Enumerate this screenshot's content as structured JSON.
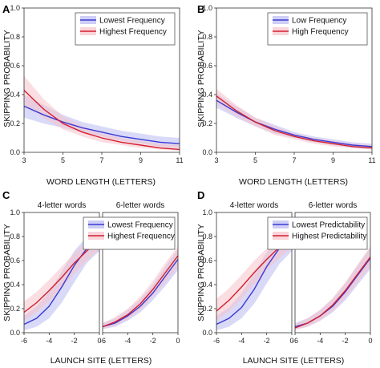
{
  "colors": {
    "blue": "#3a3ad4",
    "red": "#d21f2f",
    "blue_band": "#b9b9f2",
    "red_band": "#f6c3cb"
  },
  "chart_data": [
    {
      "panel": "A",
      "type": "line",
      "xlabel": "WORD LENGTH (LETTERS)",
      "ylabel": "SKIPPING PROBABILITY",
      "xlim": [
        3,
        11
      ],
      "ylim": [
        0,
        1.0
      ],
      "xticks": [
        "3",
        "5",
        "7",
        "9",
        "11"
      ],
      "yticks": [
        "0.0",
        "0.2",
        "0.4",
        "0.6",
        "0.8",
        "1.0"
      ],
      "legend": {
        "position": "top-right"
      },
      "series": [
        {
          "name": "Lowest Frequency",
          "color": "blue",
          "x": [
            3,
            4,
            5,
            6,
            7,
            8,
            9,
            10,
            11
          ],
          "y": [
            0.32,
            0.26,
            0.21,
            0.17,
            0.14,
            0.11,
            0.09,
            0.07,
            0.06
          ],
          "lower": [
            0.24,
            0.2,
            0.17,
            0.14,
            0.11,
            0.08,
            0.06,
            0.04,
            0.03
          ],
          "upper": [
            0.4,
            0.33,
            0.26,
            0.21,
            0.18,
            0.15,
            0.13,
            0.11,
            0.1
          ]
        },
        {
          "name": "Highest Frequency",
          "color": "red",
          "x": [
            3,
            4,
            5,
            6,
            7,
            8,
            9,
            10,
            11
          ],
          "y": [
            0.43,
            0.3,
            0.2,
            0.14,
            0.1,
            0.07,
            0.05,
            0.03,
            0.02
          ],
          "lower": [
            0.33,
            0.24,
            0.16,
            0.11,
            0.07,
            0.05,
            0.03,
            0.02,
            0.01
          ],
          "upper": [
            0.53,
            0.37,
            0.25,
            0.18,
            0.13,
            0.1,
            0.08,
            0.06,
            0.05
          ]
        }
      ]
    },
    {
      "panel": "B",
      "type": "line",
      "xlabel": "WORD LENGTH (LETTERS)",
      "ylabel": "SKIPPING PROBABILITY",
      "xlim": [
        3,
        11
      ],
      "ylim": [
        0,
        1.0
      ],
      "xticks": [
        "3",
        "5",
        "7",
        "9",
        "11"
      ],
      "yticks": [
        "0.0",
        "0.2",
        "0.4",
        "0.6",
        "0.8",
        "1.0"
      ],
      "legend": {
        "position": "top-right"
      },
      "series": [
        {
          "name": "Low Frequency",
          "color": "blue",
          "x": [
            3,
            4,
            5,
            6,
            7,
            8,
            9,
            10,
            11
          ],
          "y": [
            0.36,
            0.28,
            0.21,
            0.16,
            0.12,
            0.09,
            0.07,
            0.05,
            0.04
          ],
          "lower": [
            0.31,
            0.24,
            0.18,
            0.13,
            0.1,
            0.07,
            0.05,
            0.03,
            0.02
          ],
          "upper": [
            0.41,
            0.32,
            0.24,
            0.19,
            0.14,
            0.11,
            0.09,
            0.07,
            0.06
          ]
        },
        {
          "name": "High Frequency",
          "color": "red",
          "x": [
            3,
            4,
            5,
            6,
            7,
            8,
            9,
            10,
            11
          ],
          "y": [
            0.39,
            0.29,
            0.21,
            0.15,
            0.11,
            0.08,
            0.06,
            0.04,
            0.03
          ],
          "lower": [
            0.34,
            0.25,
            0.18,
            0.12,
            0.09,
            0.06,
            0.04,
            0.03,
            0.02
          ],
          "upper": [
            0.44,
            0.33,
            0.24,
            0.18,
            0.13,
            0.1,
            0.08,
            0.06,
            0.05
          ]
        }
      ]
    },
    {
      "panel": "C",
      "type": "line",
      "xlabel": "LAUNCH SITE (LETTERS)",
      "ylabel": "SKIPPING PROBABILITY",
      "ylim": [
        0,
        1.0
      ],
      "yticks": [
        "0.0",
        "0.2",
        "0.4",
        "0.6",
        "0.8",
        "1.0"
      ],
      "legend": {
        "position": "top-right"
      },
      "facets": [
        {
          "strip": "4-letter words",
          "xlim": [
            -6,
            0
          ],
          "xticks": [
            "-6",
            "-4",
            "-2",
            "0"
          ],
          "series": [
            {
              "name": "Lowest Frequency",
              "color": "blue",
              "x": [
                -6,
                -5,
                -4,
                -3,
                -2,
                -1,
                0
              ],
              "y": [
                0.07,
                0.12,
                0.22,
                0.38,
                0.56,
                0.7,
                0.8
              ],
              "lower": [
                0.02,
                0.05,
                0.12,
                0.25,
                0.42,
                0.58,
                0.68
              ],
              "upper": [
                0.14,
                0.22,
                0.34,
                0.51,
                0.68,
                0.8,
                0.88
              ]
            },
            {
              "name": "Highest Frequency",
              "color": "red",
              "x": [
                -6,
                -5,
                -4,
                -3,
                -2,
                -1,
                0
              ],
              "y": [
                0.17,
                0.25,
                0.35,
                0.46,
                0.58,
                0.68,
                0.77
              ],
              "lower": [
                0.1,
                0.17,
                0.26,
                0.37,
                0.49,
                0.6,
                0.69
              ],
              "upper": [
                0.26,
                0.34,
                0.44,
                0.55,
                0.66,
                0.76,
                0.84
              ]
            }
          ]
        },
        {
          "strip": "6-letter words",
          "xlim": [
            -6,
            0
          ],
          "xticks": [
            "-6",
            "-4",
            "-2",
            "0"
          ],
          "series": [
            {
              "name": "Lowest Frequency",
              "color": "blue",
              "x": [
                -6,
                -5,
                -4,
                -3,
                -2,
                -1,
                0
              ],
              "y": [
                0.05,
                0.08,
                0.14,
                0.22,
                0.33,
                0.47,
                0.61
              ],
              "lower": [
                0.03,
                0.05,
                0.1,
                0.17,
                0.27,
                0.39,
                0.52
              ],
              "upper": [
                0.08,
                0.12,
                0.19,
                0.28,
                0.4,
                0.55,
                0.7
              ]
            },
            {
              "name": "Highest Frequency",
              "color": "red",
              "x": [
                -6,
                -5,
                -4,
                -3,
                -2,
                -1,
                0
              ],
              "y": [
                0.05,
                0.09,
                0.15,
                0.24,
                0.36,
                0.5,
                0.64
              ],
              "lower": [
                0.03,
                0.06,
                0.11,
                0.19,
                0.3,
                0.42,
                0.55
              ],
              "upper": [
                0.08,
                0.13,
                0.2,
                0.3,
                0.43,
                0.58,
                0.72
              ]
            }
          ]
        }
      ]
    },
    {
      "panel": "D",
      "type": "line",
      "xlabel": "LAUNCH SITE (LETTERS)",
      "ylabel": "SKIPPING PROBABILITY",
      "ylim": [
        0,
        1.0
      ],
      "yticks": [
        "0.0",
        "0.2",
        "0.4",
        "0.6",
        "0.8",
        "1.0"
      ],
      "legend": {
        "position": "top-right"
      },
      "facets": [
        {
          "strip": "4-letter words",
          "xlim": [
            -6,
            0
          ],
          "xticks": [
            "-6",
            "-4",
            "-2",
            "0"
          ],
          "series": [
            {
              "name": "Lowest Predictability",
              "color": "blue",
              "x": [
                -6,
                -5,
                -4,
                -3,
                -2,
                -1,
                0
              ],
              "y": [
                0.07,
                0.12,
                0.21,
                0.36,
                0.55,
                0.7,
                0.8
              ],
              "lower": [
                0.02,
                0.05,
                0.12,
                0.24,
                0.41,
                0.57,
                0.68
              ],
              "upper": [
                0.14,
                0.21,
                0.33,
                0.49,
                0.67,
                0.8,
                0.88
              ]
            },
            {
              "name": "Highest Predictability",
              "color": "red",
              "x": [
                -6,
                -5,
                -4,
                -3,
                -2,
                -1,
                0
              ],
              "y": [
                0.18,
                0.27,
                0.38,
                0.5,
                0.61,
                0.71,
                0.8
              ],
              "lower": [
                0.1,
                0.18,
                0.28,
                0.4,
                0.52,
                0.62,
                0.71
              ],
              "upper": [
                0.28,
                0.37,
                0.48,
                0.6,
                0.7,
                0.79,
                0.87
              ]
            }
          ]
        },
        {
          "strip": "6-letter words",
          "xlim": [
            -6,
            0
          ],
          "xticks": [
            "-6",
            "-4",
            "-2",
            "0"
          ],
          "series": [
            {
              "name": "Lowest Predictability",
              "color": "blue",
              "x": [
                -6,
                -5,
                -4,
                -3,
                -2,
                -1,
                0
              ],
              "y": [
                0.05,
                0.08,
                0.14,
                0.22,
                0.34,
                0.48,
                0.62
              ],
              "lower": [
                0.03,
                0.05,
                0.1,
                0.17,
                0.27,
                0.4,
                0.53
              ],
              "upper": [
                0.08,
                0.12,
                0.19,
                0.28,
                0.41,
                0.56,
                0.71
              ]
            },
            {
              "name": "Highest Predictability",
              "color": "red",
              "x": [
                -6,
                -5,
                -4,
                -3,
                -2,
                -1,
                0
              ],
              "y": [
                0.04,
                0.08,
                0.14,
                0.23,
                0.35,
                0.49,
                0.63
              ],
              "lower": [
                0.02,
                0.05,
                0.1,
                0.18,
                0.29,
                0.42,
                0.55
              ],
              "upper": [
                0.07,
                0.12,
                0.19,
                0.29,
                0.42,
                0.57,
                0.72
              ]
            }
          ]
        }
      ]
    }
  ]
}
